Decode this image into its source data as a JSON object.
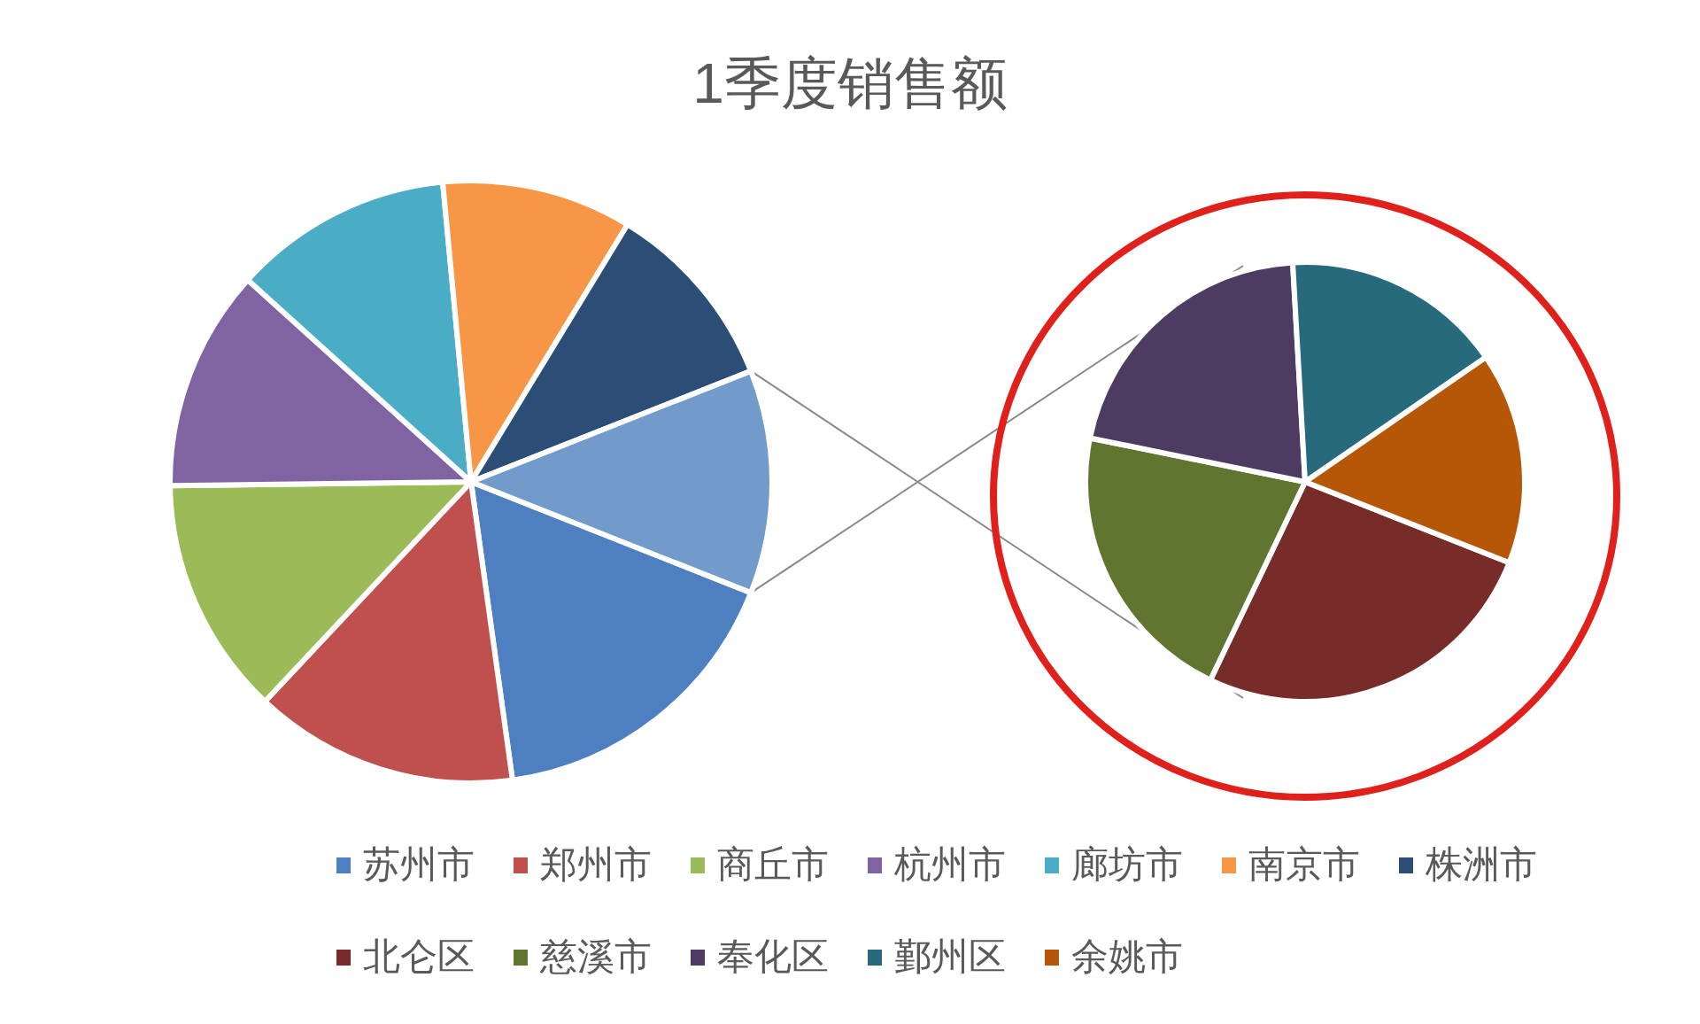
{
  "chart_data": [
    {
      "type": "pie",
      "title": "1季度销售额",
      "categories": [
        "苏州市",
        "郑州市",
        "商丘市",
        "杭州市",
        "廊坊市",
        "南京市",
        "株洲市",
        null
      ],
      "values": [
        16.8,
        14.2,
        12.8,
        11.9,
        11.8,
        10.2,
        10.3,
        12.0
      ],
      "colors": [
        "#4e7fc1",
        "#c0504d",
        "#9bbb59",
        "#8064a2",
        "#4bacc6",
        "#f79646",
        "#2c4d75",
        "#729aca"
      ],
      "legend": "bottom"
    },
    {
      "type": "pie",
      "categories": [
        "北仑区",
        "慈溪市",
        "奉化区",
        "鄞州区",
        "余姚市"
      ],
      "values": [
        26.1,
        21.1,
        20.9,
        16.3,
        15.6
      ],
      "colors": [
        "#772c2a",
        "#5f7530",
        "#4d3b62",
        "#276a7c",
        "#b65708"
      ],
      "legend": "bottom"
    }
  ]
}
